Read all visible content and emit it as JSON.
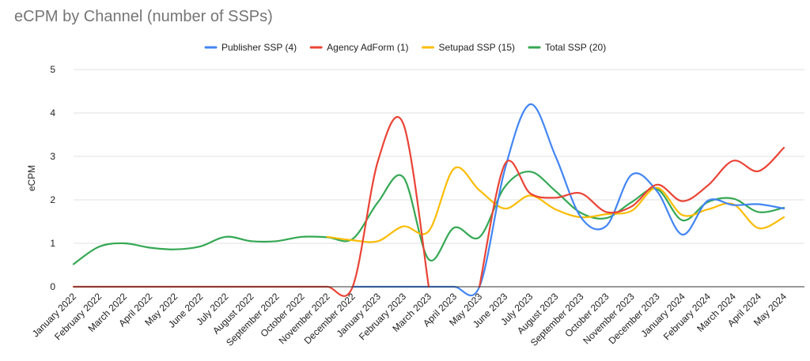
{
  "chart_data": {
    "type": "line",
    "title": "eCPM by Channel (number of SSPs)",
    "xlabel": "",
    "ylabel": "eCPM",
    "ylim": [
      0,
      5
    ],
    "yticks": [
      0,
      1,
      2,
      3,
      4,
      5
    ],
    "grid": true,
    "legend_position": "top-center",
    "categories": [
      "January 2022",
      "February 2022",
      "March 2022",
      "April 2022",
      "May 2022",
      "June 2022",
      "July 2022",
      "August 2022",
      "September 2022",
      "October 2022",
      "November 2022",
      "December 2022",
      "January 2023",
      "February 2023",
      "March 2023",
      "April 2023",
      "May 2023",
      "June 2023",
      "July 2023",
      "August 2023",
      "September 2023",
      "October 2023",
      "November 2023",
      "December 2023",
      "January 2024",
      "February 2024",
      "March 2024",
      "April 2024",
      "May 2024"
    ],
    "series": [
      {
        "name": "Publisher SSP (4)",
        "color": "#4285F4",
        "values": [
          null,
          null,
          null,
          null,
          null,
          null,
          null,
          null,
          null,
          null,
          null,
          0,
          0,
          0,
          0,
          0,
          0,
          2.7,
          4.2,
          3.0,
          1.6,
          1.4,
          2.58,
          2.2,
          1.2,
          1.98,
          1.88,
          1.9,
          1.8
        ]
      },
      {
        "name": "Agency AdForm (1)",
        "color": "#EA4335",
        "values": [
          0,
          0,
          0,
          0,
          0,
          0,
          0,
          0,
          0,
          0,
          0,
          0,
          2.9,
          3.75,
          0,
          null,
          0,
          2.82,
          2.15,
          2.05,
          2.15,
          1.72,
          1.85,
          2.35,
          1.97,
          2.33,
          2.9,
          2.66,
          3.2
        ]
      },
      {
        "name": "Setupad SSP (15)",
        "color": "#FBBC04",
        "values": [
          null,
          null,
          null,
          null,
          null,
          null,
          null,
          null,
          null,
          null,
          1.15,
          1.07,
          1.05,
          1.39,
          1.28,
          2.72,
          2.22,
          1.8,
          2.1,
          1.78,
          1.6,
          1.67,
          1.75,
          2.28,
          1.65,
          1.78,
          1.9,
          1.35,
          1.6
        ]
      },
      {
        "name": "Total SSP (20)",
        "color": "#34A853",
        "values": [
          0.52,
          0.92,
          1.0,
          0.9,
          0.86,
          0.93,
          1.15,
          1.05,
          1.05,
          1.15,
          1.14,
          1.1,
          1.95,
          2.52,
          0.63,
          1.36,
          1.14,
          2.3,
          2.65,
          2.2,
          1.7,
          1.58,
          1.95,
          2.25,
          1.53,
          1.95,
          2.03,
          1.72,
          1.82
        ]
      }
    ]
  }
}
